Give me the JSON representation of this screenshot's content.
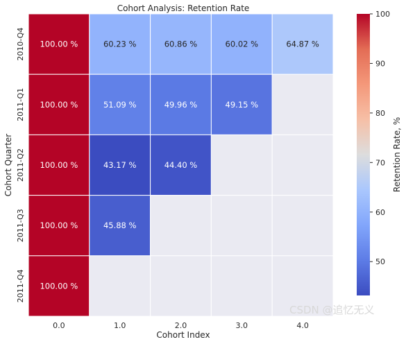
{
  "chart_data": {
    "type": "heatmap",
    "title": "Cohort Analysis: Retention Rate",
    "xlabel": "Cohort Index",
    "ylabel": "Cohort Quarter",
    "x_ticks": [
      "0.0",
      "1.0",
      "2.0",
      "3.0",
      "4.0"
    ],
    "y_ticks": [
      "2010-Q4",
      "2011-Q1",
      "2011-Q2",
      "2011-Q3",
      "2011-Q4"
    ],
    "values": [
      [
        100.0,
        60.23,
        60.86,
        60.02,
        64.87
      ],
      [
        100.0,
        51.09,
        49.96,
        49.15,
        null
      ],
      [
        100.0,
        43.17,
        44.4,
        null,
        null
      ],
      [
        100.0,
        45.88,
        null,
        null,
        null
      ],
      [
        100.0,
        null,
        null,
        null,
        null
      ]
    ],
    "value_suffix": " %",
    "colormap": "coolwarm",
    "vmin": 43.17,
    "vmax": 100,
    "colorbar": {
      "label": "Retention Rate, %",
      "ticks": [
        50,
        60,
        70,
        80,
        90,
        100
      ]
    },
    "missing_color": "#eaeaf2",
    "grid_line_color": "#ffffff"
  },
  "watermark": "CSDN @追忆无义"
}
